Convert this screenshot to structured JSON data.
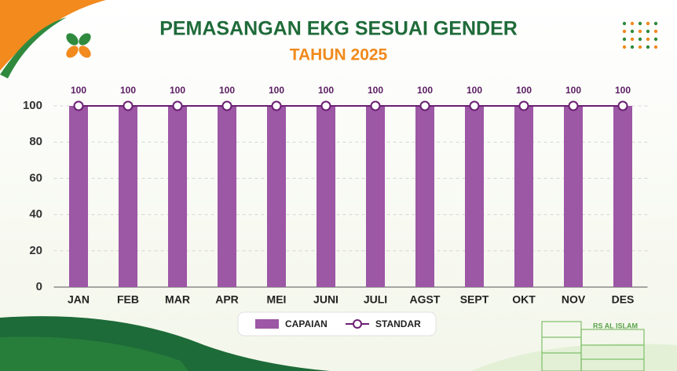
{
  "chart_data": {
    "type": "bar-line",
    "title": "PEMASANGAN EKG SESUAI GENDER",
    "subtitle": "TAHUN 2025",
    "categories": [
      "JAN",
      "FEB",
      "MAR",
      "APR",
      "MEI",
      "JUNI",
      "JULI",
      "AGST",
      "SEPT",
      "OKT",
      "NOV",
      "DES"
    ],
    "series": [
      {
        "name": "CAPAIAN",
        "type": "bar",
        "color": "#9c57a5",
        "values": [
          100,
          100,
          100,
          100,
          100,
          100,
          100,
          100,
          100,
          100,
          100,
          100
        ]
      },
      {
        "name": "STANDAR",
        "type": "line",
        "color": "#6b1f72",
        "values": [
          100,
          100,
          100,
          100,
          100,
          100,
          100,
          100,
          100,
          100,
          100,
          100
        ]
      }
    ],
    "ylim": [
      0,
      100
    ],
    "yticks": [
      0,
      20,
      40,
      60,
      80,
      100
    ],
    "grid": true,
    "legend": "bottom",
    "building_sign": "RS AL ISLAM"
  }
}
